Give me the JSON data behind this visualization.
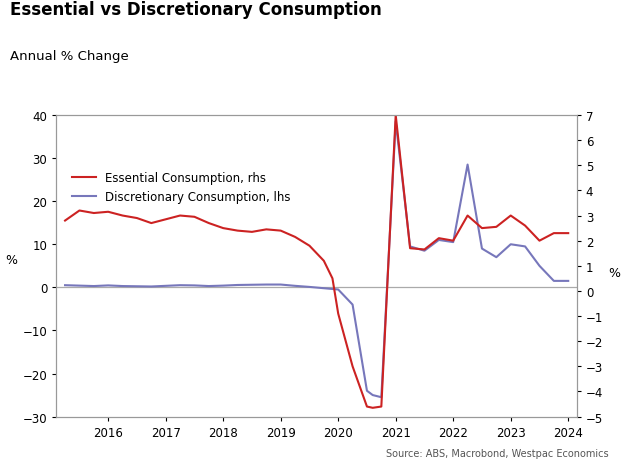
{
  "title": "Essential vs Discretionary Consumption",
  "subtitle": "Annual % Change",
  "ylabel_left": "%",
  "ylabel_right": "%",
  "source": "Source: ABS, Macrobond, Westpac Economics",
  "legend": [
    {
      "label": "Essential Consumption, rhs",
      "color": "#cc2222"
    },
    {
      "label": "Discretionary Consumption, lhs",
      "color": "#7777bb"
    }
  ],
  "left_ylim": [
    -30,
    40
  ],
  "right_ylim": [
    -5,
    7
  ],
  "left_yticks": [
    -30,
    -20,
    -10,
    0,
    10,
    20,
    30,
    40
  ],
  "right_yticks": [
    -5,
    -4,
    -3,
    -2,
    -1,
    0,
    1,
    2,
    3,
    4,
    5,
    6,
    7
  ],
  "xlim": [
    2015.1,
    2024.15
  ],
  "xticks": [
    2016,
    2017,
    2018,
    2019,
    2020,
    2021,
    2022,
    2023,
    2024
  ],
  "essential_rhs": {
    "x": [
      2015.25,
      2015.5,
      2015.75,
      2016.0,
      2016.25,
      2016.5,
      2016.75,
      2017.0,
      2017.25,
      2017.5,
      2017.75,
      2018.0,
      2018.25,
      2018.5,
      2018.75,
      2019.0,
      2019.25,
      2019.5,
      2019.75,
      2019.9,
      2020.0,
      2020.25,
      2020.5,
      2020.6,
      2020.75,
      2021.0,
      2021.25,
      2021.5,
      2021.75,
      2022.0,
      2022.25,
      2022.5,
      2022.75,
      2023.0,
      2023.25,
      2023.5,
      2023.75,
      2024.0
    ],
    "y": [
      2.8,
      3.2,
      3.1,
      3.15,
      3.0,
      2.9,
      2.7,
      2.85,
      3.0,
      2.95,
      2.7,
      2.5,
      2.4,
      2.35,
      2.45,
      2.4,
      2.15,
      1.8,
      1.2,
      0.5,
      -0.9,
      -3.0,
      -4.6,
      -4.65,
      -4.6,
      7.0,
      1.7,
      1.65,
      2.1,
      2.0,
      3.0,
      2.5,
      2.55,
      3.0,
      2.6,
      2.0,
      2.3,
      2.3
    ]
  },
  "discretionary_lhs": {
    "x": [
      2015.25,
      2015.5,
      2015.75,
      2016.0,
      2016.25,
      2016.5,
      2016.75,
      2017.0,
      2017.25,
      2017.5,
      2017.75,
      2018.0,
      2018.25,
      2018.5,
      2018.75,
      2019.0,
      2019.25,
      2019.5,
      2019.75,
      2020.0,
      2020.25,
      2020.5,
      2020.6,
      2020.75,
      2021.0,
      2021.25,
      2021.5,
      2021.75,
      2022.0,
      2022.25,
      2022.5,
      2022.75,
      2023.0,
      2023.25,
      2023.5,
      2023.75,
      2024.0
    ],
    "y": [
      0.5,
      0.4,
      0.3,
      0.45,
      0.3,
      0.25,
      0.2,
      0.35,
      0.5,
      0.45,
      0.3,
      0.4,
      0.55,
      0.6,
      0.65,
      0.65,
      0.35,
      0.1,
      -0.2,
      -0.5,
      -4.0,
      -24.0,
      -25.0,
      -25.5,
      38.5,
      9.5,
      8.5,
      11.0,
      10.5,
      28.5,
      9.0,
      7.0,
      10.0,
      9.5,
      5.0,
      1.5,
      1.5
    ]
  }
}
